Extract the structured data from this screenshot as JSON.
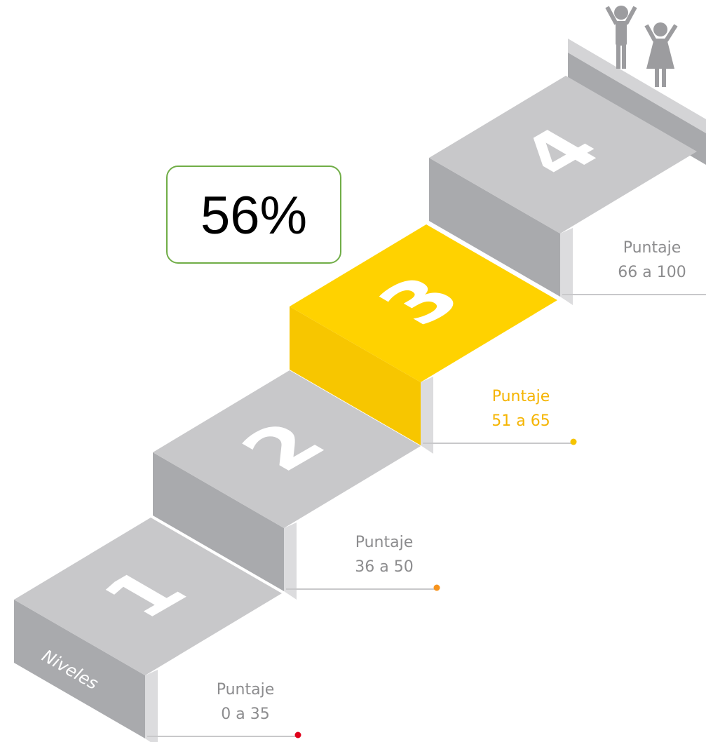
{
  "badge": "56%",
  "axis_label": "Niveles",
  "levels": [
    {
      "number": "1",
      "label": "Puntaje",
      "range": "0 a 35"
    },
    {
      "number": "2",
      "label": "Puntaje",
      "range": "36 a 50"
    },
    {
      "number": "3",
      "label": "Puntaje",
      "range": "51 a 65"
    },
    {
      "number": "4",
      "label": "Puntaje",
      "range": "66 a 100"
    }
  ]
}
